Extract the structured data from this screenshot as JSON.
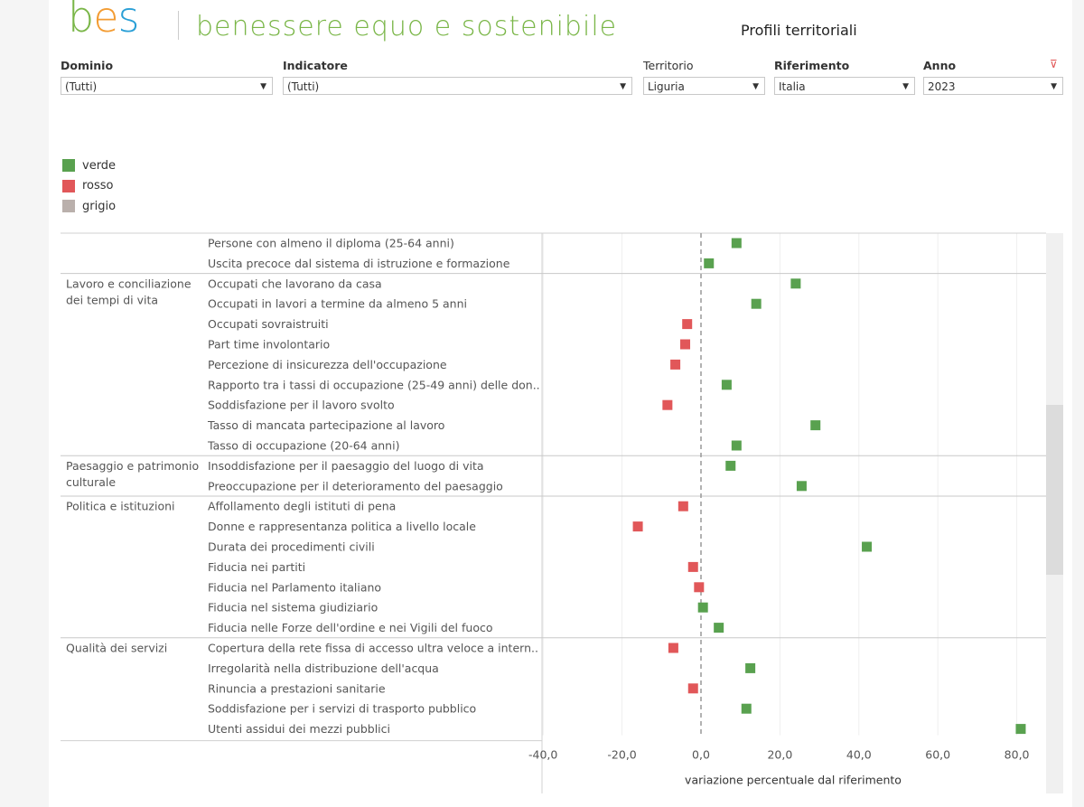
{
  "header": {
    "logo": {
      "b": "b",
      "e": "e",
      "s": "s"
    },
    "logo_text": "benessere equo e sostenibile",
    "title": "Profili territoriali"
  },
  "filters": [
    {
      "label": "Dominio",
      "value": "(Tutti)"
    },
    {
      "label": "Indicatore",
      "value": "(Tutti)"
    },
    {
      "label": "Territorio",
      "value": "Liguria"
    },
    {
      "label": "Riferimento",
      "value": "Italia"
    },
    {
      "label": "Anno",
      "value": "2023"
    }
  ],
  "legend": [
    {
      "label": "verde",
      "color": "#59a14f"
    },
    {
      "label": "rosso",
      "color": "#e15759"
    },
    {
      "label": "grigio",
      "color": "#bab0ac"
    }
  ],
  "chart_data": {
    "type": "scatter",
    "xlabel": "variazione percentuale dal riferimento",
    "xlim": [
      -40,
      80
    ],
    "xticks": [
      -40,
      -20,
      0,
      20,
      40,
      60,
      80
    ],
    "xtick_labels": [
      "-40,0",
      "-20,0",
      "0,0",
      "20,0",
      "40,0",
      "60,0",
      "80,0"
    ],
    "colors": {
      "verde": "#59a14f",
      "rosso": "#e15759",
      "grigio": "#bab0ac"
    },
    "groups": [
      {
        "domain": [],
        "rows": [
          {
            "label": "Persone con almeno il diploma (25-64 anni)",
            "value": 9.0,
            "color": "verde"
          },
          {
            "label": "Uscita precoce dal sistema di istruzione e formazione",
            "value": 2.0,
            "color": "verde"
          }
        ]
      },
      {
        "domain": [
          "Lavoro e conciliazione",
          "dei tempi di vita"
        ],
        "rows": [
          {
            "label": "Occupati che lavorano da casa",
            "value": 24.0,
            "color": "verde"
          },
          {
            "label": "Occupati in lavori a termine da almeno 5 anni",
            "value": 14.0,
            "color": "verde"
          },
          {
            "label": "Occupati sovraistruiti",
            "value": -3.5,
            "color": "rosso"
          },
          {
            "label": "Part time involontario",
            "value": -4.0,
            "color": "rosso"
          },
          {
            "label": "Percezione di insicurezza dell'occupazione",
            "value": -6.5,
            "color": "rosso"
          },
          {
            "label": "Rapporto tra i tassi di occupazione (25-49 anni) delle don..",
            "value": 6.5,
            "color": "verde"
          },
          {
            "label": "Soddisfazione per il lavoro svolto",
            "value": -8.5,
            "color": "rosso"
          },
          {
            "label": "Tasso di mancata partecipazione al lavoro",
            "value": 29.0,
            "color": "verde"
          },
          {
            "label": "Tasso di occupazione (20-64 anni)",
            "value": 9.0,
            "color": "verde"
          }
        ]
      },
      {
        "domain": [
          "Paesaggio e patrimonio",
          "culturale"
        ],
        "rows": [
          {
            "label": "Insoddisfazione per il paesaggio del luogo di vita",
            "value": 7.5,
            "color": "verde"
          },
          {
            "label": "Preoccupazione per il deterioramento del paesaggio",
            "value": 25.5,
            "color": "verde"
          }
        ]
      },
      {
        "domain": [
          "Politica e istituzioni"
        ],
        "rows": [
          {
            "label": "Affollamento degli istituti di pena",
            "value": -4.5,
            "color": "rosso"
          },
          {
            "label": "Donne e rappresentanza politica a livello locale",
            "value": -16.0,
            "color": "rosso"
          },
          {
            "label": "Durata dei procedimenti civili",
            "value": 42.0,
            "color": "verde"
          },
          {
            "label": "Fiducia nei partiti",
            "value": -2.0,
            "color": "rosso"
          },
          {
            "label": "Fiducia nel Parlamento italiano",
            "value": -0.5,
            "color": "rosso"
          },
          {
            "label": "Fiducia nel sistema giudiziario",
            "value": 0.5,
            "color": "verde"
          },
          {
            "label": "Fiducia nelle Forze dell'ordine e nei Vigili del fuoco",
            "value": 4.5,
            "color": "verde"
          }
        ]
      },
      {
        "domain": [
          "Qualità dei servizi"
        ],
        "rows": [
          {
            "label": "Copertura della rete fissa di accesso ultra veloce a intern..",
            "value": -7.0,
            "color": "rosso"
          },
          {
            "label": "Irregolarità nella distribuzione dell'acqua",
            "value": 12.5,
            "color": "verde"
          },
          {
            "label": "Rinuncia a prestazioni sanitarie",
            "value": -2.0,
            "color": "rosso"
          },
          {
            "label": "Soddisfazione per i servizi di trasporto pubblico",
            "value": 11.5,
            "color": "verde"
          },
          {
            "label": "Utenti assidui dei mezzi pubblici",
            "value": 81.0,
            "color": "verde"
          }
        ]
      }
    ]
  }
}
